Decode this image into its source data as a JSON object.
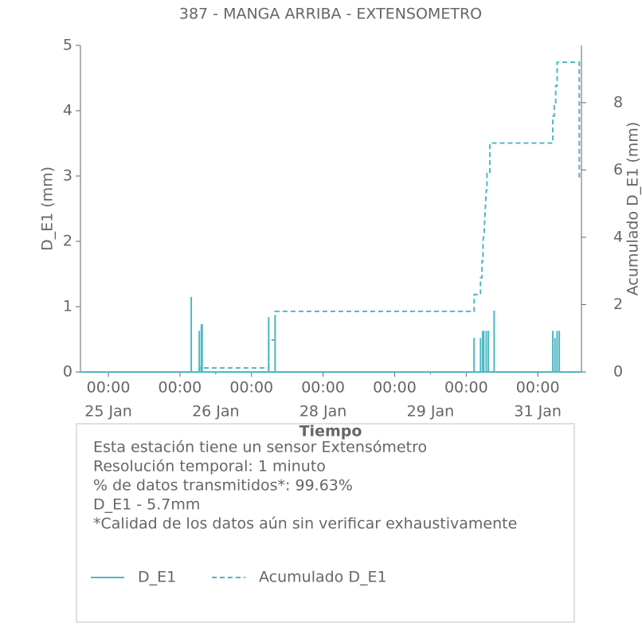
{
  "chart_data": {
    "type": "line",
    "title": "387 - MANGA ARRIBA - EXTENSOMETRO",
    "ylabel": "D_E1 (mm)",
    "y2label": "Acumulado D_E1 (mm)",
    "xlabel": "Tiempo",
    "xlim": [
      -0.39,
      6.61
    ],
    "xticks": [
      {
        "value": 0,
        "label": "00:00"
      },
      {
        "value": 1,
        "label": "00:00"
      },
      {
        "value": 2,
        "label": "00:00"
      },
      {
        "value": 3,
        "label": "00:00"
      },
      {
        "value": 4,
        "label": "00:00"
      },
      {
        "value": 5,
        "label": "00:00"
      },
      {
        "value": 6,
        "label": "00:00"
      }
    ],
    "xdates": [
      {
        "value": 0,
        "label": "25 Jan"
      },
      {
        "value": 1.5,
        "label": "26 Jan"
      },
      {
        "value": 3,
        "label": "28 Jan"
      },
      {
        "value": 4.5,
        "label": "29 Jan"
      },
      {
        "value": 6,
        "label": "31 Jan"
      }
    ],
    "ylim": [
      0,
      5
    ],
    "yticks": [
      0,
      1,
      2,
      3,
      4,
      5
    ],
    "y2lim": [
      0,
      9.7
    ],
    "y2ticks": [
      0,
      2,
      4,
      6,
      8
    ],
    "series": [
      {
        "name": "D_E1",
        "color": "#4db8c4",
        "dash": false,
        "x": [
          -0.39,
          1.158,
          1.158,
          1.158,
          1.27,
          1.27,
          1.27,
          1.3,
          1.3,
          1.3,
          1.31,
          1.31,
          1.31,
          2.24,
          2.24,
          2.24,
          2.33,
          2.33,
          2.33,
          5.11,
          5.11,
          5.11,
          5.2,
          5.2,
          5.2,
          5.23,
          5.23,
          5.23,
          5.245,
          5.245,
          5.245,
          5.28,
          5.28,
          5.28,
          5.31,
          5.31,
          5.31,
          5.39,
          5.39,
          5.39,
          6.21,
          6.21,
          6.21,
          6.24,
          6.24,
          6.24,
          6.27,
          6.27,
          6.27,
          6.3,
          6.3,
          6.3,
          6.61
        ],
        "values": [
          0,
          0,
          1.15,
          0,
          0,
          0.63,
          0,
          0,
          0.73,
          0,
          0,
          0.73,
          0,
          0,
          0.84,
          0,
          0,
          0.87,
          0,
          0,
          0.52,
          0,
          0,
          0.52,
          0,
          0,
          0.63,
          0,
          0,
          0.63,
          0,
          0,
          0.63,
          0,
          0,
          0.63,
          0,
          0,
          0.94,
          0,
          0,
          0.63,
          0,
          0,
          0.52,
          0,
          0,
          0.63,
          0,
          0,
          0.63,
          0,
          0
        ]
      },
      {
        "name": "Acumulado D_E1",
        "color": "#4db8c4",
        "dash": true,
        "axis": "y2",
        "x": [
          -0.39,
          1.27,
          1.27,
          2.24,
          2.24,
          2.33,
          2.33,
          5.11,
          5.11,
          5.2,
          5.2,
          5.22,
          5.22,
          5.235,
          5.235,
          5.25,
          5.26,
          5.27,
          5.28,
          5.29,
          5.29,
          5.33,
          5.33,
          6.21,
          6.21,
          6.23,
          6.23,
          6.25,
          6.25,
          6.27,
          6.27,
          6.58,
          6.58
        ],
        "values": [
          0,
          0,
          0.12,
          0.12,
          0.95,
          0.95,
          1.8,
          1.8,
          2.3,
          2.3,
          2.8,
          2.8,
          3.3,
          3.3,
          3.9,
          4.1,
          4.6,
          5.0,
          5.4,
          5.4,
          5.9,
          5.9,
          6.8,
          6.8,
          7.6,
          7.6,
          8.0,
          8.0,
          8.5,
          8.5,
          9.2,
          9.2,
          5.7
        ]
      }
    ],
    "info": [
      "Esta estación tiene un sensor Extensómetro",
      "Resolución temporal: 1 minuto",
      "% de datos transmitidos*: 99.63%",
      "D_E1 - 5.7mm",
      "*Calidad de los datos aún sin verificar exhaustivamente"
    ]
  }
}
